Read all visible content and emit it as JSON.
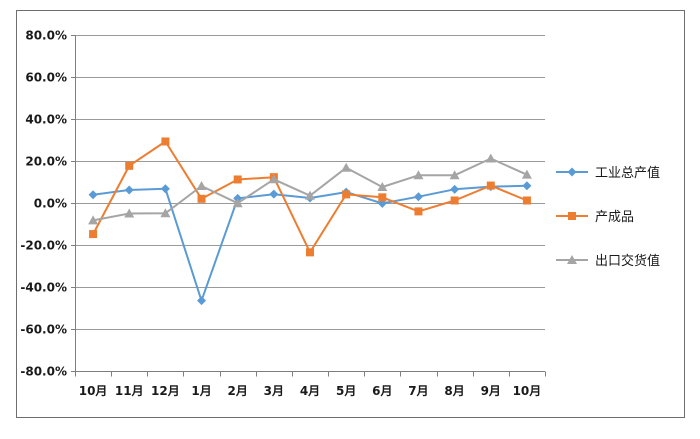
{
  "chart_data": {
    "type": "line",
    "title": "",
    "xlabel": "",
    "ylabel": "",
    "categories": [
      "10月",
      "11月",
      "12月",
      "1月",
      "2月",
      "3月",
      "4月",
      "5月",
      "6月",
      "7月",
      "8月",
      "9月",
      "10月"
    ],
    "ylim": [
      -80,
      80
    ],
    "yticks": [
      80,
      60,
      40,
      20,
      0,
      -20,
      -40,
      -60,
      -80
    ],
    "ytick_labels": [
      "80.0%",
      "60.0%",
      "40.0%",
      "20.0%",
      "0.0%",
      "-20.0%",
      "-40.0%",
      "-60.0%",
      "-80.0%"
    ],
    "grid": true,
    "legend_position": "right",
    "series": [
      {
        "name": "工业总产值",
        "color": "#5b9bd5",
        "marker": "diamond",
        "values": [
          3.9,
          6.2,
          6.8,
          -46.5,
          2.2,
          4.2,
          2.4,
          5.2,
          -0.2,
          3.0,
          6.5,
          7.8,
          8.2
        ]
      },
      {
        "name": "产成品",
        "color": "#ed7d31",
        "marker": "square",
        "values": [
          -14.8,
          17.7,
          29.3,
          2.0,
          11.2,
          12.3,
          -23.5,
          4.1,
          2.7,
          -4.0,
          1.2,
          8.3,
          1.2
        ]
      },
      {
        "name": "出口交货值",
        "color": "#a5a5a5",
        "marker": "triangle",
        "values": [
          -8.3,
          -5.0,
          -4.9,
          8.1,
          -0.1,
          11.3,
          3.5,
          16.8,
          7.6,
          13.2,
          13.2,
          21.2,
          13.5
        ]
      }
    ]
  }
}
